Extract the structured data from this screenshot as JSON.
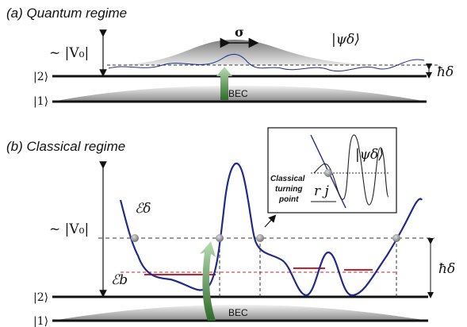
{
  "panel_a": {
    "title": "(a) Quantum regime",
    "potential_label": "~ |V₀|",
    "sigma_label": "σ",
    "psi_label": "|ψδ⟩",
    "hbar_delta_label": "ħδ",
    "state2_label": "|2⟩",
    "state1_label": "|1⟩",
    "bec_label": "BEC"
  },
  "panel_b": {
    "title": "(b) Classical regime",
    "potential_label": "~ |V₀|",
    "energy_delta_label": "ℰδ",
    "energy_b_label": "ℰb",
    "hbar_delta_label": "ħδ",
    "state2_label": "|2⟩",
    "state1_label": "|1⟩",
    "bec_label": "BEC",
    "inset": {
      "psi_label": "|ψδ⟩",
      "turning_point_line1": "Classical",
      "turning_point_line2": "turning",
      "turning_point_line3": "point",
      "rj_label": "r j"
    }
  },
  "colors": {
    "potential_curve": "#1f2a8c",
    "bound_level": "#cc1f2a",
    "transition_arrow": "#4f8a4a",
    "bec_gray": "#8a8a8a"
  }
}
